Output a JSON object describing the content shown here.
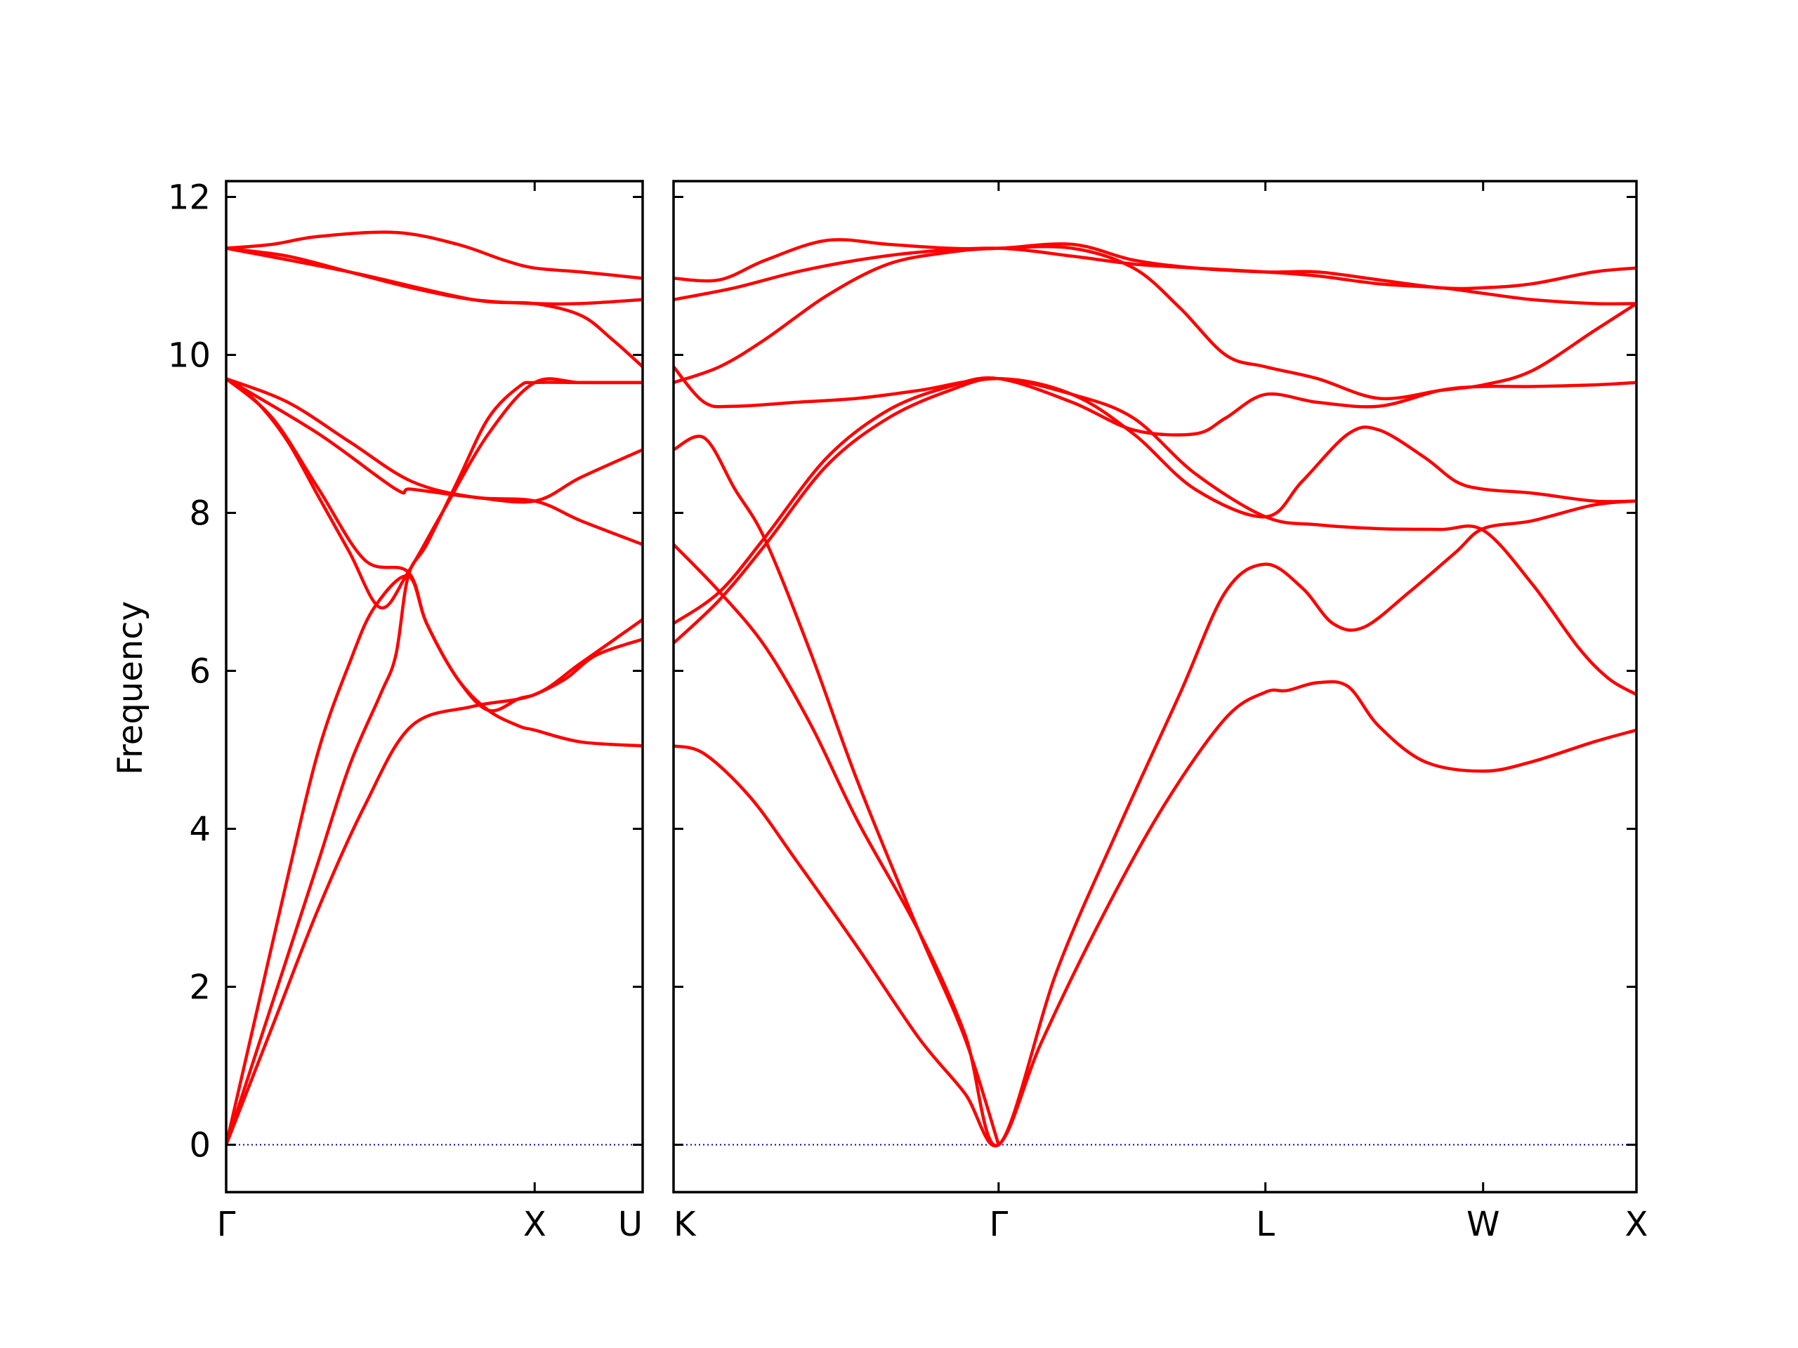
{
  "chart_data": {
    "type": "line",
    "ylabel": "Frequency",
    "ylim": [
      -0.6,
      12.2
    ],
    "yticks": [
      0,
      2,
      4,
      6,
      8,
      10,
      12
    ],
    "line_color": "#ff0000",
    "zero_line_color": "#0000aa",
    "grid": false,
    "legend": "none",
    "panels": [
      {
        "xlim": [
          0,
          1.35
        ],
        "ticks": [
          {
            "x": 0,
            "label": "Γ"
          },
          {
            "x": 1.0,
            "label": "X"
          },
          {
            "x": 1.35,
            "label": "U"
          }
        ],
        "bands": [
          [
            [
              0,
              0.0
            ],
            [
              0.1,
              1.2
            ],
            [
              0.2,
              2.4
            ],
            [
              0.3,
              3.6
            ],
            [
              0.4,
              4.8
            ],
            [
              0.5,
              5.7
            ],
            [
              0.55,
              6.2
            ],
            [
              0.59,
              7.2
            ],
            [
              0.65,
              7.6
            ],
            [
              0.75,
              8.4
            ],
            [
              0.85,
              9.2
            ],
            [
              0.95,
              9.6
            ],
            [
              1.0,
              9.65
            ],
            [
              1.15,
              9.65
            ],
            [
              1.35,
              9.65
            ]
          ],
          [
            [
              0,
              0.0
            ],
            [
              0.1,
              1.7
            ],
            [
              0.2,
              3.4
            ],
            [
              0.3,
              5.0
            ],
            [
              0.4,
              6.1
            ],
            [
              0.48,
              6.8
            ],
            [
              0.59,
              7.2
            ],
            [
              0.65,
              6.6
            ],
            [
              0.75,
              5.9
            ],
            [
              0.85,
              5.5
            ],
            [
              0.95,
              5.3
            ],
            [
              1.0,
              5.25
            ],
            [
              1.15,
              5.1
            ],
            [
              1.35,
              5.05
            ]
          ],
          [
            [
              0,
              9.7
            ],
            [
              0.15,
              9.2
            ],
            [
              0.3,
              8.3
            ],
            [
              0.45,
              7.4
            ],
            [
              0.59,
              7.25
            ],
            [
              0.65,
              6.6
            ],
            [
              0.75,
              5.9
            ],
            [
              0.85,
              5.5
            ],
            [
              0.95,
              5.65
            ],
            [
              1.0,
              5.7
            ],
            [
              1.1,
              5.9
            ],
            [
              1.2,
              6.2
            ],
            [
              1.35,
              6.4
            ]
          ],
          [
            [
              0,
              9.7
            ],
            [
              0.2,
              9.4
            ],
            [
              0.4,
              8.9
            ],
            [
              0.6,
              8.4
            ],
            [
              0.8,
              8.2
            ],
            [
              1.0,
              8.15
            ],
            [
              1.15,
              7.9
            ],
            [
              1.35,
              7.6
            ]
          ],
          [
            [
              0,
              9.7
            ],
            [
              0.3,
              9.0
            ],
            [
              0.55,
              8.3
            ],
            [
              0.6,
              8.3
            ],
            [
              0.8,
              8.2
            ],
            [
              1.0,
              8.15
            ],
            [
              1.15,
              8.45
            ],
            [
              1.35,
              8.8
            ]
          ],
          [
            [
              0,
              11.35
            ],
            [
              0.15,
              11.4
            ],
            [
              0.3,
              11.5
            ],
            [
              0.55,
              11.55
            ],
            [
              0.75,
              11.4
            ],
            [
              0.9,
              11.2
            ],
            [
              1.0,
              11.1
            ],
            [
              1.15,
              11.05
            ],
            [
              1.35,
              10.97
            ]
          ],
          [
            [
              0,
              11.35
            ],
            [
              0.2,
              11.25
            ],
            [
              0.4,
              11.05
            ],
            [
              0.6,
              10.85
            ],
            [
              0.8,
              10.7
            ],
            [
              1.0,
              10.65
            ],
            [
              1.15,
              10.65
            ],
            [
              1.35,
              10.7
            ]
          ],
          [
            [
              0,
              9.7
            ],
            [
              0.1,
              9.4
            ],
            [
              0.2,
              8.9
            ],
            [
              0.3,
              8.2
            ],
            [
              0.4,
              7.5
            ],
            [
              0.5,
              6.8
            ],
            [
              0.59,
              7.25
            ],
            [
              0.7,
              8.0
            ],
            [
              0.85,
              9.0
            ],
            [
              1.0,
              9.65
            ],
            [
              1.15,
              9.65
            ],
            [
              1.35,
              9.65
            ]
          ],
          [
            [
              0,
              0.0
            ],
            [
              0.15,
              1.5
            ],
            [
              0.3,
              3.0
            ],
            [
              0.45,
              4.3
            ],
            [
              0.6,
              5.3
            ],
            [
              0.8,
              5.55
            ],
            [
              1.0,
              5.7
            ],
            [
              1.15,
              6.1
            ],
            [
              1.35,
              6.65
            ]
          ],
          [
            [
              0,
              11.35
            ],
            [
              0.4,
              11.05
            ],
            [
              0.8,
              10.7
            ],
            [
              1.0,
              10.65
            ],
            [
              1.15,
              10.5
            ],
            [
              1.25,
              10.2
            ],
            [
              1.35,
              9.85
            ]
          ]
        ]
      },
      {
        "xlim": [
          0,
          3.14
        ],
        "ticks": [
          {
            "x": 0,
            "label": "K"
          },
          {
            "x": 1.06,
            "label": "Γ"
          },
          {
            "x": 1.93,
            "label": "L"
          },
          {
            "x": 2.64,
            "label": "W"
          },
          {
            "x": 3.14,
            "label": "X"
          }
        ],
        "bands": [
          [
            [
              0,
              5.05
            ],
            [
              0.1,
              4.95
            ],
            [
              0.25,
              4.4
            ],
            [
              0.4,
              3.6
            ],
            [
              0.6,
              2.5
            ],
            [
              0.8,
              1.35
            ],
            [
              0.95,
              0.65
            ],
            [
              1.06,
              0.0
            ],
            [
              1.2,
              1.3
            ],
            [
              1.4,
              2.9
            ],
            [
              1.6,
              4.3
            ],
            [
              1.8,
              5.4
            ],
            [
              1.93,
              5.73
            ],
            [
              2.0,
              5.75
            ],
            [
              2.1,
              5.85
            ],
            [
              2.2,
              5.8
            ],
            [
              2.3,
              5.3
            ],
            [
              2.45,
              4.85
            ],
            [
              2.64,
              4.73
            ],
            [
              2.8,
              4.85
            ],
            [
              3.0,
              5.1
            ],
            [
              3.14,
              5.25
            ]
          ],
          [
            [
              0,
              7.6
            ],
            [
              0.15,
              7.0
            ],
            [
              0.3,
              6.3
            ],
            [
              0.45,
              5.3
            ],
            [
              0.6,
              4.1
            ],
            [
              0.8,
              2.7
            ],
            [
              0.95,
              1.4
            ],
            [
              1.06,
              0.0
            ],
            [
              1.25,
              2.2
            ],
            [
              1.45,
              4.0
            ],
            [
              1.65,
              5.7
            ],
            [
              1.8,
              7.0
            ],
            [
              1.93,
              7.35
            ],
            [
              2.05,
              7.05
            ],
            [
              2.15,
              6.6
            ],
            [
              2.25,
              6.55
            ],
            [
              2.4,
              7.0
            ],
            [
              2.55,
              7.5
            ],
            [
              2.64,
              7.8
            ],
            [
              2.8,
              7.9
            ],
            [
              3.0,
              8.1
            ],
            [
              3.14,
              8.15
            ]
          ],
          [
            [
              0,
              8.8
            ],
            [
              0.1,
              8.95
            ],
            [
              0.2,
              8.3
            ],
            [
              0.3,
              7.65
            ],
            [
              0.45,
              6.2
            ],
            [
              0.6,
              4.6
            ],
            [
              0.8,
              2.7
            ],
            [
              0.95,
              1.35
            ],
            [
              1.06,
              0.0
            ]
          ],
          [
            [
              0,
              6.35
            ],
            [
              0.15,
              6.9
            ],
            [
              0.3,
              7.6
            ],
            [
              0.5,
              8.6
            ],
            [
              0.7,
              9.2
            ],
            [
              0.9,
              9.55
            ],
            [
              1.06,
              9.7
            ],
            [
              1.3,
              9.5
            ],
            [
              1.5,
              9.2
            ],
            [
              1.7,
              8.5
            ],
            [
              1.93,
              7.95
            ],
            [
              2.1,
              7.85
            ],
            [
              2.3,
              7.8
            ],
            [
              2.5,
              7.79
            ],
            [
              2.64,
              7.78
            ],
            [
              2.8,
              7.1
            ],
            [
              2.95,
              6.3
            ],
            [
              3.05,
              5.9
            ],
            [
              3.14,
              5.7
            ]
          ],
          [
            [
              0,
              6.6
            ],
            [
              0.15,
              7.0
            ],
            [
              0.3,
              7.7
            ],
            [
              0.5,
              8.7
            ],
            [
              0.7,
              9.3
            ],
            [
              0.9,
              9.6
            ],
            [
              1.06,
              9.7
            ],
            [
              1.3,
              9.4
            ],
            [
              1.5,
              9.05
            ],
            [
              1.7,
              9.0
            ],
            [
              1.8,
              9.2
            ],
            [
              1.93,
              9.5
            ],
            [
              2.1,
              9.4
            ],
            [
              2.3,
              9.35
            ],
            [
              2.5,
              9.55
            ],
            [
              2.64,
              9.6
            ],
            [
              2.8,
              9.6
            ],
            [
              3.0,
              9.62
            ],
            [
              3.14,
              9.65
            ]
          ],
          [
            [
              0,
              9.85
            ],
            [
              0.1,
              9.4
            ],
            [
              0.2,
              9.35
            ],
            [
              0.4,
              9.4
            ],
            [
              0.6,
              9.45
            ],
            [
              0.8,
              9.55
            ],
            [
              1.06,
              9.7
            ],
            [
              1.3,
              9.5
            ],
            [
              1.5,
              9.0
            ],
            [
              1.7,
              8.3
            ],
            [
              1.93,
              7.95
            ],
            [
              2.05,
              8.4
            ],
            [
              2.2,
              9.0
            ],
            [
              2.3,
              9.05
            ],
            [
              2.45,
              8.7
            ],
            [
              2.55,
              8.4
            ],
            [
              2.64,
              8.3
            ],
            [
              2.8,
              8.25
            ],
            [
              3.0,
              8.15
            ],
            [
              3.14,
              8.15
            ]
          ],
          [
            [
              0,
              10.7
            ],
            [
              0.2,
              10.85
            ],
            [
              0.4,
              11.05
            ],
            [
              0.6,
              11.2
            ],
            [
              0.8,
              11.3
            ],
            [
              1.06,
              11.35
            ],
            [
              1.3,
              11.25
            ],
            [
              1.5,
              11.15
            ],
            [
              1.7,
              11.1
            ],
            [
              1.93,
              11.05
            ],
            [
              2.1,
              11.0
            ],
            [
              2.3,
              10.9
            ],
            [
              2.5,
              10.85
            ],
            [
              2.64,
              10.78
            ],
            [
              2.8,
              10.7
            ],
            [
              3.0,
              10.65
            ],
            [
              3.14,
              10.65
            ]
          ],
          [
            [
              0,
              10.97
            ],
            [
              0.15,
              10.95
            ],
            [
              0.3,
              11.2
            ],
            [
              0.5,
              11.45
            ],
            [
              0.7,
              11.4
            ],
            [
              0.9,
              11.35
            ],
            [
              1.06,
              11.35
            ],
            [
              1.3,
              11.4
            ],
            [
              1.5,
              11.2
            ],
            [
              1.7,
              11.1
            ],
            [
              1.93,
              11.05
            ],
            [
              2.1,
              11.05
            ],
            [
              2.3,
              10.95
            ],
            [
              2.5,
              10.85
            ],
            [
              2.64,
              10.85
            ],
            [
              2.8,
              10.9
            ],
            [
              3.0,
              11.05
            ],
            [
              3.14,
              11.1
            ]
          ],
          [
            [
              0,
              9.65
            ],
            [
              0.15,
              9.85
            ],
            [
              0.3,
              10.2
            ],
            [
              0.5,
              10.75
            ],
            [
              0.7,
              11.15
            ],
            [
              0.9,
              11.3
            ],
            [
              1.06,
              11.35
            ],
            [
              1.3,
              11.35
            ],
            [
              1.5,
              11.1
            ],
            [
              1.65,
              10.6
            ],
            [
              1.8,
              10.0
            ],
            [
              1.93,
              9.85
            ],
            [
              2.1,
              9.7
            ],
            [
              2.3,
              9.45
            ],
            [
              2.5,
              9.55
            ],
            [
              2.64,
              9.62
            ],
            [
              2.8,
              9.8
            ],
            [
              3.0,
              10.3
            ],
            [
              3.14,
              10.65
            ]
          ],
          [
            [
              0,
              0.0
            ],
            [
              3.14,
              0.0
            ]
          ]
        ]
      }
    ]
  }
}
